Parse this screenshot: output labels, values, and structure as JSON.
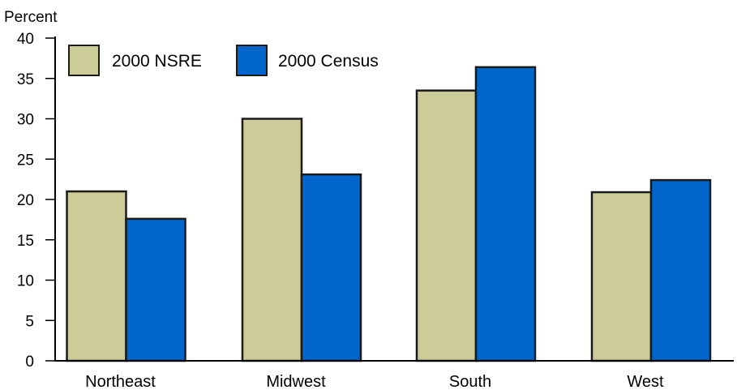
{
  "chart_data": {
    "type": "bar",
    "title": "",
    "xlabel": "",
    "ylabel": "Percent",
    "ylim": [
      0,
      40
    ],
    "yticks": [
      0,
      5,
      10,
      15,
      20,
      25,
      30,
      35,
      40
    ],
    "categories": [
      "Northeast",
      "Midwest",
      "South",
      "West"
    ],
    "series": [
      {
        "name": "2000 NSRE",
        "color": "#cccc99",
        "values": [
          21.0,
          30.0,
          33.5,
          20.9
        ]
      },
      {
        "name": "2000 Census",
        "color": "#0066cc",
        "values": [
          17.6,
          23.1,
          36.4,
          22.4
        ]
      }
    ],
    "grid": false,
    "legend": "top-left"
  }
}
